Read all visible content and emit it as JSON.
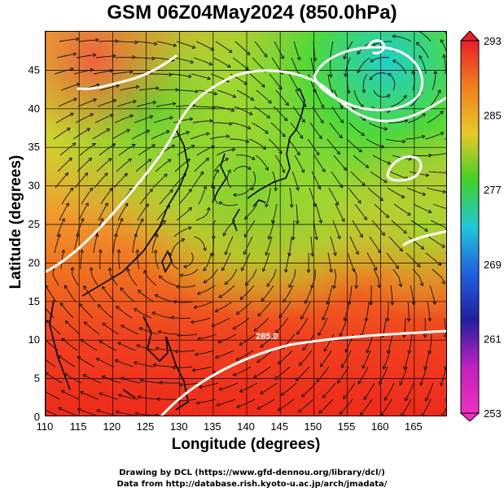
{
  "title": "GSM 06Z04May2024 (850.0hPa)",
  "xlabel": "Longitude (degrees)",
  "ylabel": "Latitude (degrees)",
  "credits": [
    "Drawing by DCL (https://www.gfd-dennou.org/library/dcl/)",
    "Data from http://database.rish.kyoto-u.ac.jp/arch/jmadata/"
  ],
  "contour_label": "285.0",
  "map": {
    "lon_range": [
      110,
      170
    ],
    "lat_range": [
      0,
      50
    ],
    "lon_ticks": [
      110,
      115,
      120,
      125,
      130,
      135,
      140,
      145,
      150,
      155,
      160,
      165
    ],
    "lat_ticks": [
      0,
      5,
      10,
      15,
      20,
      25,
      30,
      35,
      40,
      45
    ],
    "grid": true
  },
  "colorbar": {
    "labels": [
      "293",
      "285",
      "277",
      "269",
      "261",
      "253"
    ],
    "colors": [
      "#e8202a",
      "#f08020",
      "#e8c828",
      "#40d028",
      "#20c8d8",
      "#2060e0",
      "#2020a0",
      "#c020c0",
      "#f030c0"
    ]
  }
}
